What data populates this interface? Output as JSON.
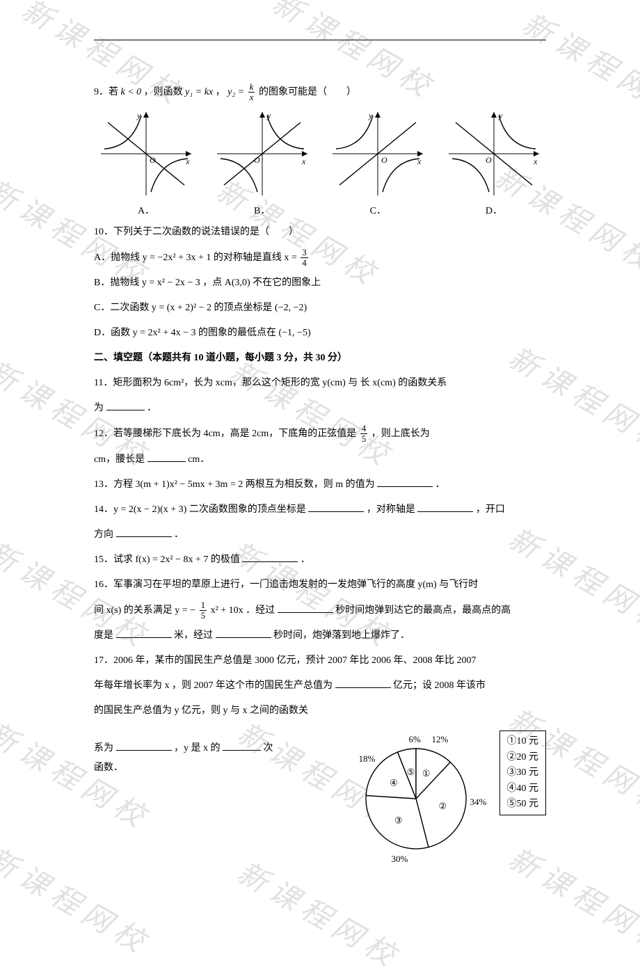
{
  "q9": {
    "prefix": "9．若 ",
    "cond": "k < 0",
    "mid": "，则函数 ",
    "y1": "y₁ = kx",
    "comma": "，",
    "y2lhs": "y₂ = ",
    "frac_num": "k",
    "frac_den": "x",
    "suffix": " 的图象可能是（　　）",
    "labels": {
      "a": "A．",
      "b": "B．",
      "c": "C．",
      "d": "D．"
    }
  },
  "q10": {
    "stem": "10．下列关于二次函数的说法错误的是（　　）",
    "a_pre": "A．抛物线 y = −2x² + 3x + 1 的对称轴是直线 x = ",
    "a_num": "3",
    "a_den": "4",
    "b": "B．抛物线 y = x² − 2x − 3 ，点 A(3,0) 不在它的图象上",
    "c": "C．二次函数 y = (x + 2)² − 2 的顶点坐标是 (−2, −2)",
    "d": "D．函数 y = 2x² + 4x − 3 的图象的最低点在 (−1, −5)"
  },
  "section2": "二、填空题（本题共有 10 道小题，每小题 3 分，共 30 分）",
  "q11": {
    "line1": "11．矩形面积为 6cm²，长为 xcm，那么这个矩形的宽 y(cm) 与 长 x(cm) 的函数关系",
    "line2pre": "为",
    "line2suf": "．"
  },
  "q12": {
    "line1pre": "12．若等腰梯形下底长为 4cm，高是 2cm，下底角的正弦值是 ",
    "num": "4",
    "den": "5",
    "line1suf": "，则上底长为",
    "line2a": "cm，腰长是",
    "line2b": "cm．"
  },
  "q13": {
    "pre": "13．方程 3(m + 1)x² − 5mx + 3m = 2 两根互为相反数，则 m 的值为",
    "suf": "．"
  },
  "q14": {
    "pre": "14．y = 2(x − 2)(x + 3) 二次函数图象的顶点坐标是",
    "mid": "，对称轴是",
    "mid2": "，开口",
    "line2": "方向",
    "suf": "．"
  },
  "q15": {
    "pre": "15．试求 f(x) = 2x² − 8x + 7 的极值",
    "suf": "．"
  },
  "q16": {
    "line1": "16．军事演习在平坦的草原上进行，一门追击炮发射的一发炮弹飞行的高度 y(m) 与飞行时",
    "line2a": "间 x(s) 的关系满足 y = −",
    "num": "1",
    "den": "5",
    "line2b": "x² + 10x ．经过",
    "line2c": "秒时间炮弹到达它的最高点，最高点的高",
    "line3a": "度是",
    "line3b": "米，经过",
    "line3c": "秒时间，炮弹落到地上爆炸了．"
  },
  "q17": {
    "line1": "17．2006 年，某市的国民生产总值是 3000 亿元，预计 2007 年比 2006 年、2008 年比 2007",
    "line2a": "年每年增长率为 x ，则 2007 年这个市的国民生产总值为",
    "line2b": "亿元；设 2008 年该市",
    "line3": "的国民生产总值为 y 亿元，则 y 与 x 之间的函数关",
    "line4a": "系为",
    "line4b": "，y 是 x 的",
    "line4c": "次函数．"
  },
  "pie": {
    "values": [
      12,
      34,
      30,
      18,
      6
    ],
    "circled": [
      "①",
      "②",
      "③",
      "④",
      "⑤"
    ],
    "pct": [
      "12%",
      "34%",
      "30%",
      "18%",
      "6%"
    ],
    "colors": {
      "stroke": "#000",
      "fill": "#ffffff"
    }
  },
  "legend": [
    "①10 元",
    "②20 元",
    "③30 元",
    "④40 元",
    "⑤50 元"
  ],
  "watermark_text": "新 课 程 网 校",
  "graph": {
    "axis_color": "#000000",
    "curve_color": "#000000",
    "O": "O",
    "x": "x",
    "y": "y"
  }
}
